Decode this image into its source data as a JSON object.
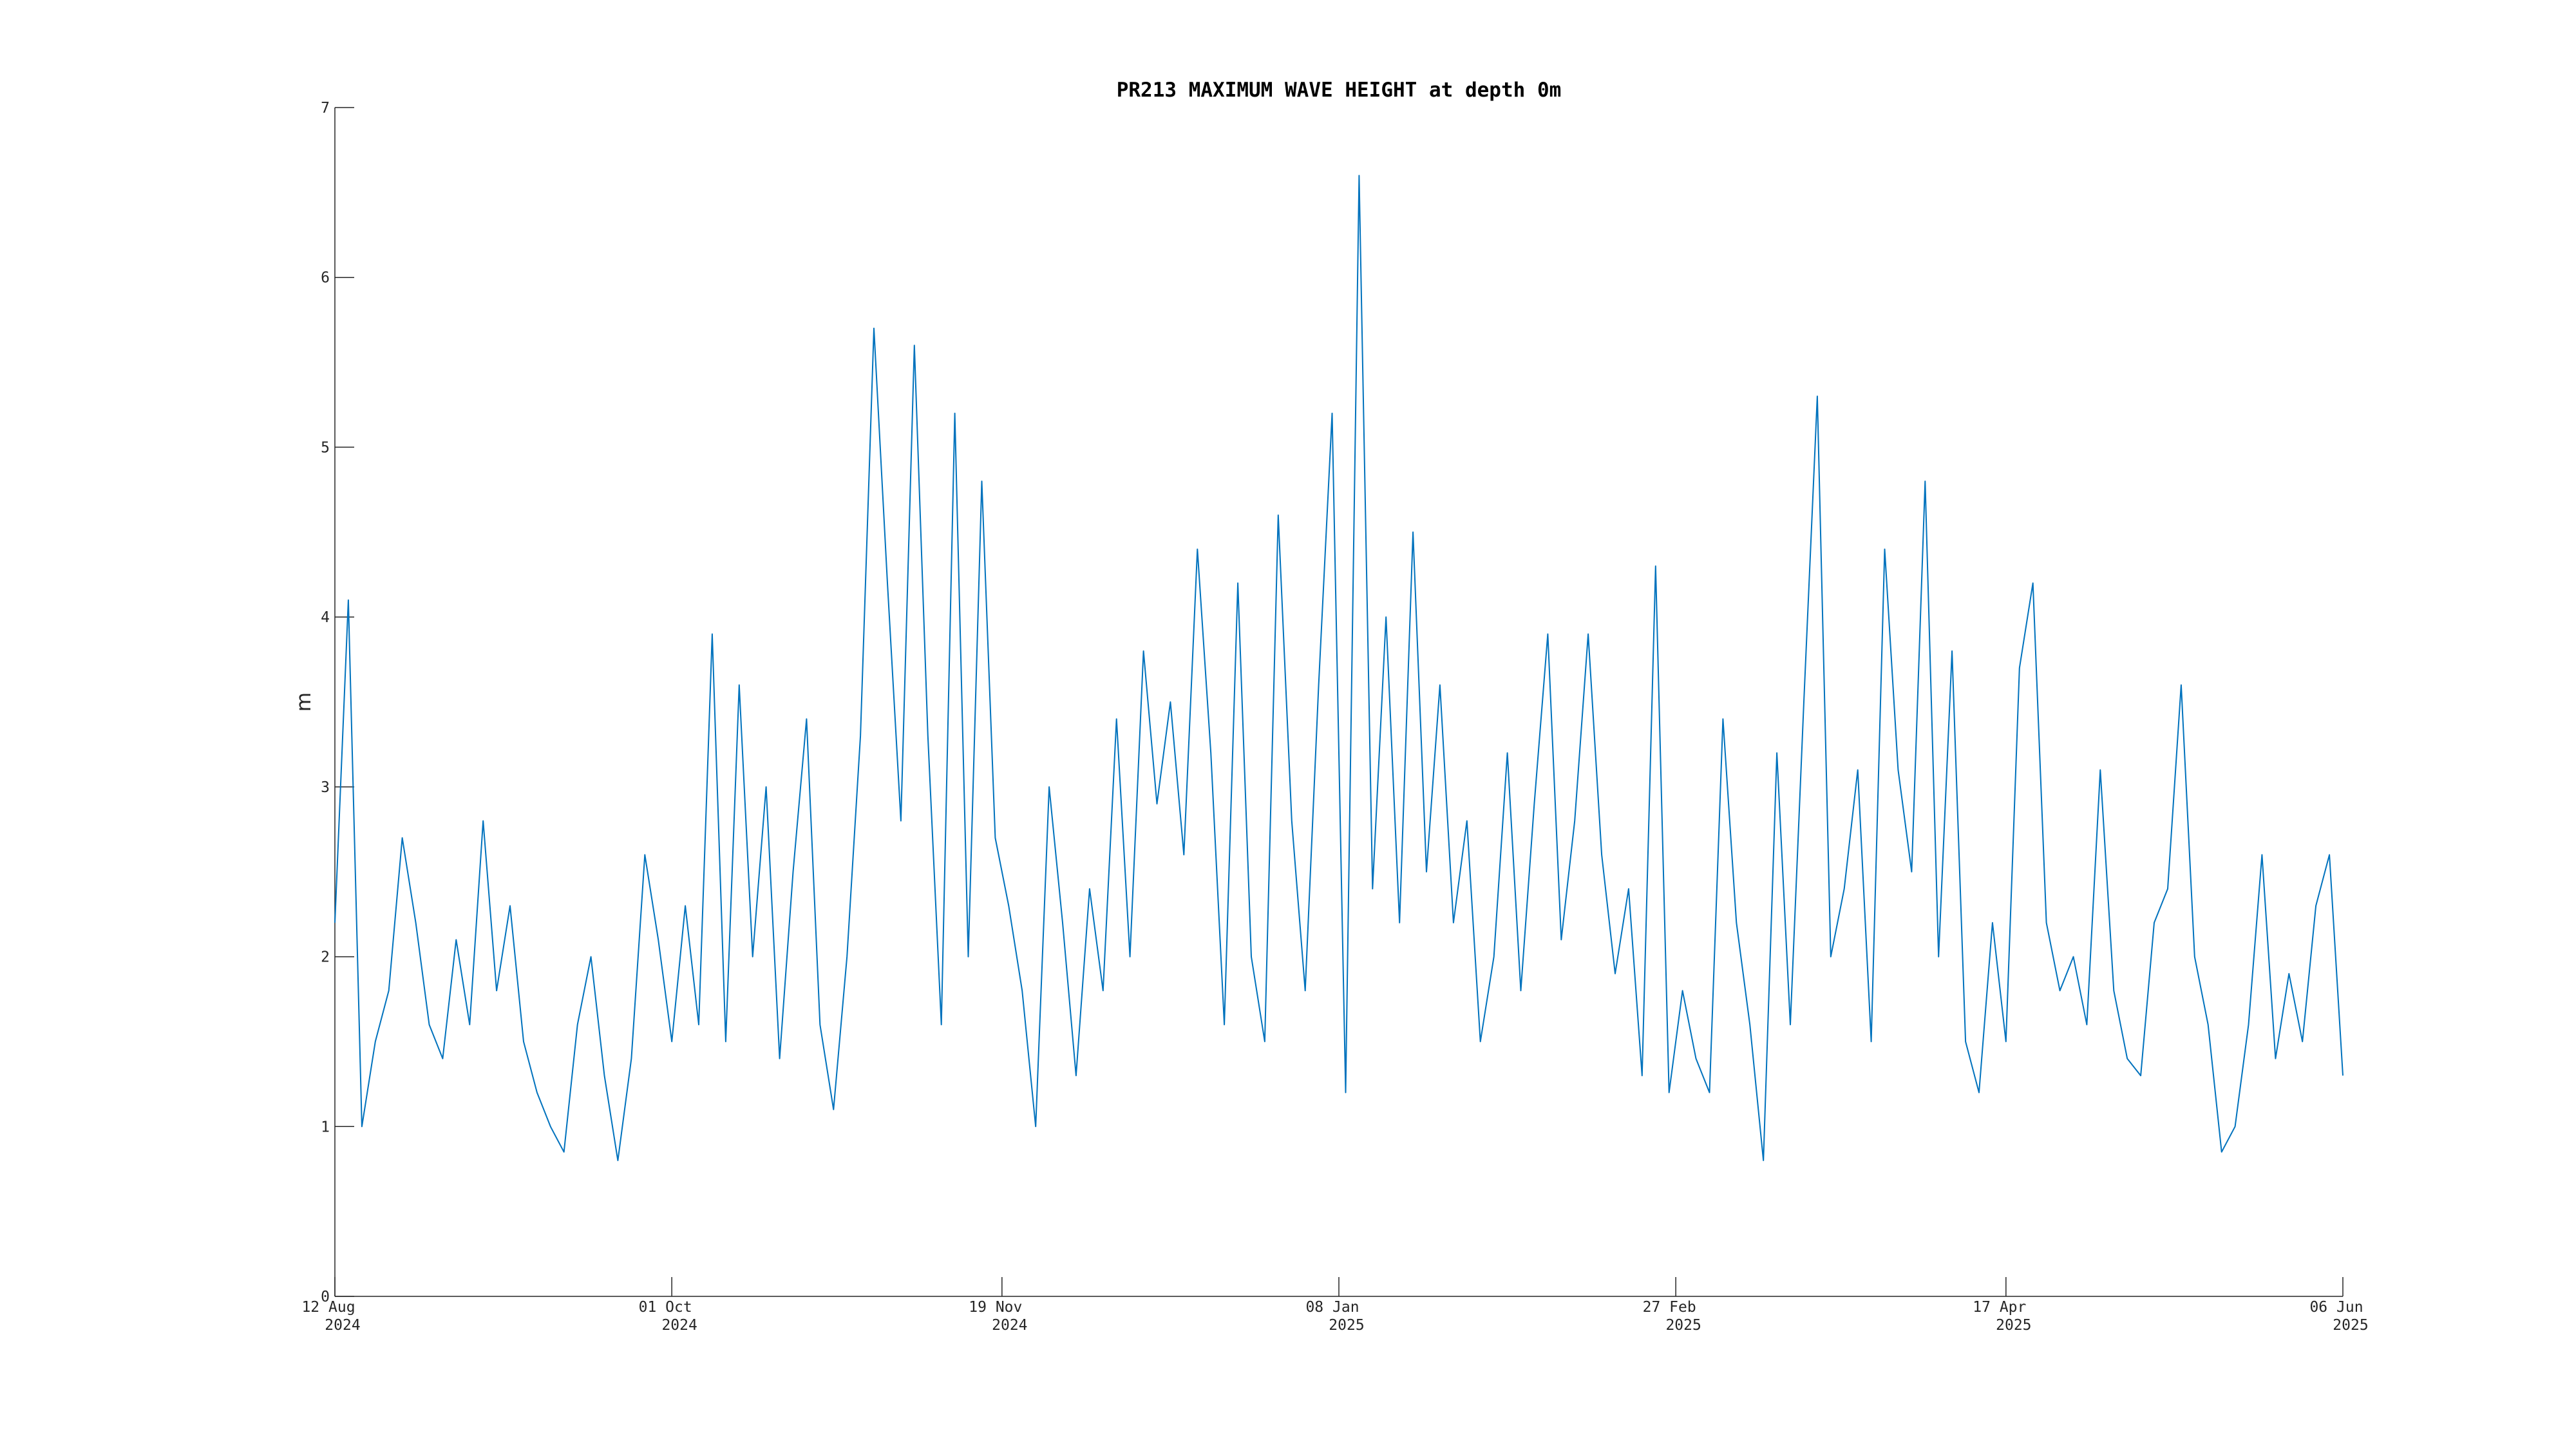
{
  "chart_data": {
    "type": "line",
    "title": "PR213 MAXIMUM WAVE HEIGHT at depth 0m",
    "ylabel": "m",
    "x": [
      "2024-08-12",
      "2024-08-14",
      "2024-08-16",
      "2024-08-18",
      "2024-08-20",
      "2024-08-22",
      "2024-08-24",
      "2024-08-26",
      "2024-08-28",
      "2024-08-30",
      "2024-09-01",
      "2024-09-03",
      "2024-09-05",
      "2024-09-07",
      "2024-09-09",
      "2024-09-11",
      "2024-09-13",
      "2024-09-15",
      "2024-09-17",
      "2024-09-19",
      "2024-09-21",
      "2024-09-23",
      "2024-09-25",
      "2024-09-27",
      "2024-09-29",
      "2024-10-01",
      "2024-10-03",
      "2024-10-05",
      "2024-10-07",
      "2024-10-09",
      "2024-10-11",
      "2024-10-13",
      "2024-10-15",
      "2024-10-17",
      "2024-10-19",
      "2024-10-21",
      "2024-10-23",
      "2024-10-25",
      "2024-10-27",
      "2024-10-29",
      "2024-10-31",
      "2024-11-02",
      "2024-11-04",
      "2024-11-06",
      "2024-11-08",
      "2024-11-10",
      "2024-11-12",
      "2024-11-14",
      "2024-11-16",
      "2024-11-18",
      "2024-11-20",
      "2024-11-22",
      "2024-11-24",
      "2024-11-26",
      "2024-11-28",
      "2024-11-30",
      "2024-12-02",
      "2024-12-04",
      "2024-12-06",
      "2024-12-08",
      "2024-12-10",
      "2024-12-12",
      "2024-12-14",
      "2024-12-16",
      "2024-12-18",
      "2024-12-20",
      "2024-12-22",
      "2024-12-24",
      "2024-12-26",
      "2024-12-28",
      "2024-12-30",
      "2025-01-01",
      "2025-01-03",
      "2025-01-05",
      "2025-01-07",
      "2025-01-09",
      "2025-01-11",
      "2025-01-13",
      "2025-01-15",
      "2025-01-17",
      "2025-01-19",
      "2025-01-21",
      "2025-01-23",
      "2025-01-25",
      "2025-01-27",
      "2025-01-29",
      "2025-01-31",
      "2025-02-02",
      "2025-02-04",
      "2025-02-06",
      "2025-02-08",
      "2025-02-10",
      "2025-02-12",
      "2025-02-14",
      "2025-02-16",
      "2025-02-18",
      "2025-02-20",
      "2025-02-22",
      "2025-02-24",
      "2025-02-26",
      "2025-02-28",
      "2025-03-02",
      "2025-03-04",
      "2025-03-06",
      "2025-03-08",
      "2025-03-10",
      "2025-03-12",
      "2025-03-14",
      "2025-03-16",
      "2025-03-18",
      "2025-03-20",
      "2025-03-22",
      "2025-03-24",
      "2025-03-26",
      "2025-03-28",
      "2025-03-30",
      "2025-04-01",
      "2025-04-03",
      "2025-04-05",
      "2025-04-07",
      "2025-04-09",
      "2025-04-11",
      "2025-04-13",
      "2025-04-15",
      "2025-04-17",
      "2025-04-19",
      "2025-04-21",
      "2025-04-23",
      "2025-04-25",
      "2025-04-27",
      "2025-04-29",
      "2025-05-01",
      "2025-05-03",
      "2025-05-05",
      "2025-05-07",
      "2025-05-09",
      "2025-05-11",
      "2025-05-13",
      "2025-05-15",
      "2025-05-17",
      "2025-05-19",
      "2025-05-21",
      "2025-05-23",
      "2025-05-25",
      "2025-05-27",
      "2025-05-29",
      "2025-05-31",
      "2025-06-02",
      "2025-06-04",
      "2025-06-06"
    ],
    "values": [
      2.2,
      4.1,
      1.0,
      1.5,
      1.8,
      2.7,
      2.2,
      1.6,
      1.4,
      2.1,
      1.6,
      2.8,
      1.8,
      2.3,
      1.5,
      1.2,
      1.0,
      0.85,
      1.6,
      2.0,
      1.3,
      0.8,
      1.4,
      2.6,
      2.1,
      1.5,
      2.3,
      1.6,
      3.9,
      1.5,
      3.6,
      2.0,
      3.0,
      1.4,
      2.5,
      3.4,
      1.6,
      1.1,
      2.0,
      3.3,
      5.7,
      4.2,
      2.8,
      5.6,
      3.3,
      1.6,
      5.2,
      2.0,
      4.8,
      2.7,
      2.3,
      1.8,
      1.0,
      3.0,
      2.2,
      1.3,
      2.4,
      1.8,
      3.4,
      2.0,
      3.8,
      2.9,
      3.5,
      2.6,
      4.4,
      3.2,
      1.6,
      4.2,
      2.0,
      1.5,
      4.6,
      2.8,
      1.8,
      3.6,
      5.2,
      1.2,
      6.6,
      2.4,
      4.0,
      2.2,
      4.5,
      2.5,
      3.6,
      2.2,
      2.8,
      1.5,
      2.0,
      3.2,
      1.8,
      2.9,
      3.9,
      2.1,
      2.8,
      3.9,
      2.6,
      1.9,
      2.4,
      1.3,
      4.3,
      1.2,
      1.8,
      1.4,
      1.2,
      3.4,
      2.2,
      1.6,
      0.8,
      3.2,
      1.6,
      3.5,
      5.3,
      2.0,
      2.4,
      3.1,
      1.5,
      4.4,
      3.1,
      2.5,
      4.8,
      2.0,
      3.8,
      1.5,
      1.2,
      2.2,
      1.5,
      3.7,
      4.2,
      2.2,
      1.8,
      2.0,
      1.6,
      3.1,
      1.8,
      1.4,
      1.3,
      2.2,
      2.4,
      3.6,
      2.0,
      1.6,
      0.85,
      1.0,
      1.6,
      2.6,
      1.4,
      1.9,
      1.5,
      2.3,
      2.6,
      1.3
    ],
    "color": "#0072bd",
    "xlim": [
      "2024-08-12",
      "2025-06-06"
    ],
    "xticks": [
      {
        "value": "2024-08-12",
        "label": "12 Aug 2024"
      },
      {
        "value": "2024-10-01",
        "label": "01 Oct 2024"
      },
      {
        "value": "2024-11-19",
        "label": "19 Nov 2024"
      },
      {
        "value": "2025-01-08",
        "label": "08 Jan 2025"
      },
      {
        "value": "2025-02-27",
        "label": "27 Feb 2025"
      },
      {
        "value": "2025-04-17",
        "label": "17 Apr 2025"
      },
      {
        "value": "2025-06-06",
        "label": "06 Jun 2025"
      }
    ],
    "ylim": [
      0,
      7
    ],
    "yticks": [
      0,
      1,
      2,
      3,
      4,
      5,
      6,
      7
    ],
    "grid": false
  }
}
